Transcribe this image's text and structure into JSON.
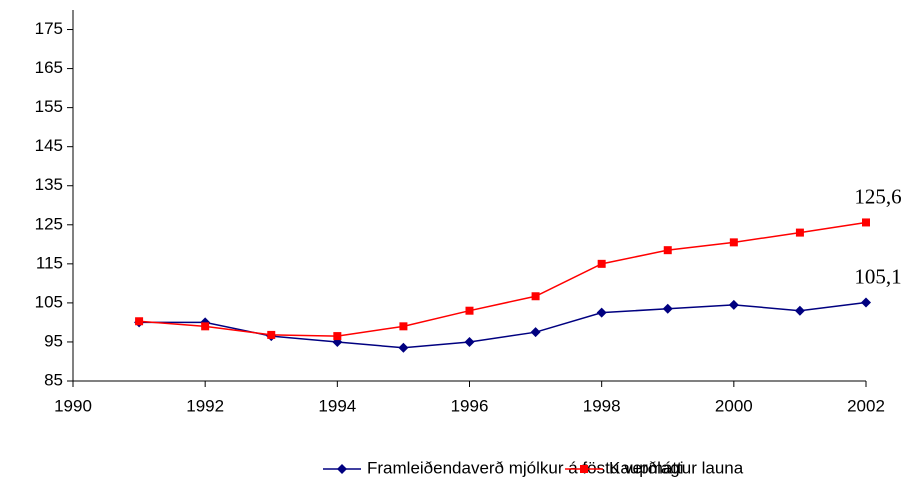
{
  "chart_data": {
    "type": "line",
    "x": [
      1991,
      1992,
      1993,
      1994,
      1995,
      1996,
      1997,
      1998,
      1999,
      2000,
      2001,
      2002
    ],
    "series": [
      {
        "name": "Framleiðendaverð mjólkur á föstu verðlagi",
        "color": "#000080",
        "marker": "diamond",
        "values": [
          100,
          100,
          96.5,
          95,
          93.5,
          95,
          97.5,
          102.5,
          103.5,
          104.5,
          103,
          105.1
        ],
        "value_labels": [
          null,
          null,
          null,
          null,
          null,
          null,
          null,
          null,
          null,
          null,
          null,
          "105,1"
        ]
      },
      {
        "name": "Kaupmáttur launa",
        "color": "#ff0000",
        "marker": "square",
        "values": [
          100.3,
          99,
          96.8,
          96.5,
          99,
          103,
          106.7,
          115,
          118.5,
          120.5,
          123,
          125.6
        ],
        "value_labels": [
          null,
          null,
          null,
          null,
          null,
          null,
          null,
          null,
          null,
          null,
          null,
          "125,6"
        ]
      }
    ],
    "xlim": [
      1990,
      2002
    ],
    "xticks": [
      1990,
      1992,
      1994,
      1996,
      1998,
      2000,
      2002
    ],
    "ylim": [
      85,
      180
    ],
    "yticks": [
      85,
      95,
      105,
      115,
      125,
      135,
      145,
      155,
      165,
      175
    ],
    "grid": false,
    "legend": "bottom"
  }
}
